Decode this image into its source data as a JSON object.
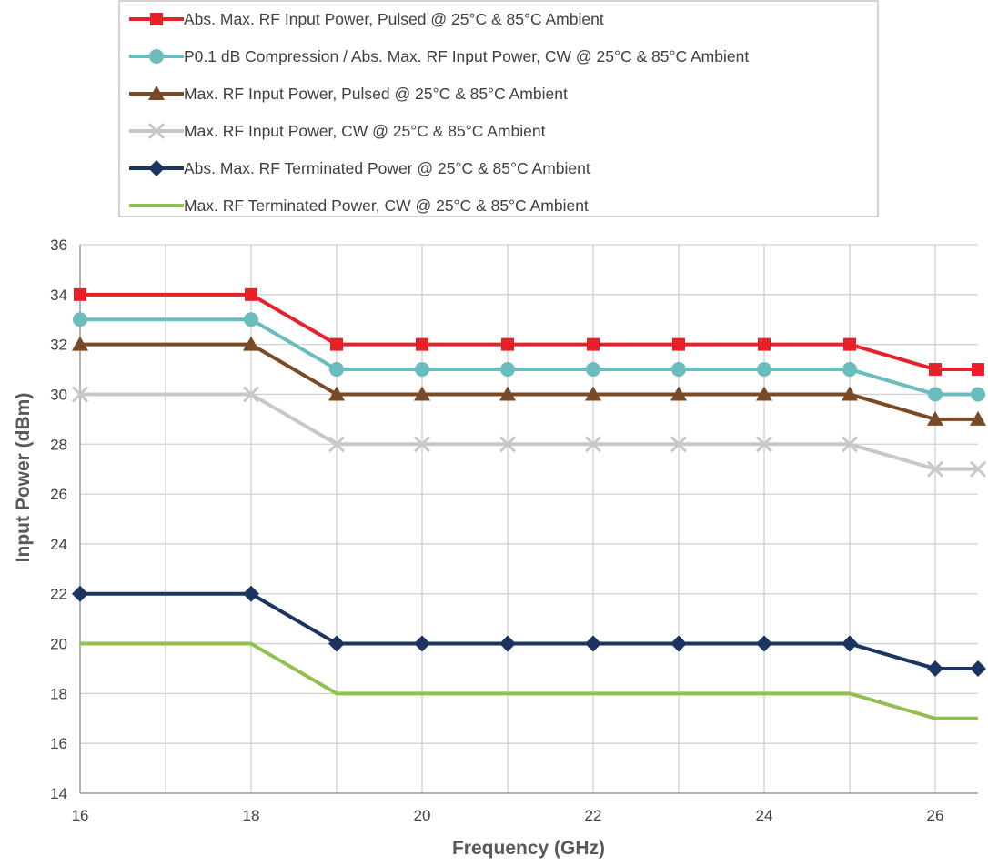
{
  "chart_data": {
    "type": "line",
    "title": "",
    "xlabel": "Frequency (GHz)",
    "ylabel": "Input Power (dBm)",
    "xlim": [
      16,
      26.5
    ],
    "ylim": [
      14,
      36
    ],
    "x_ticks": [
      "16",
      "18",
      "20",
      "22",
      "24",
      "26"
    ],
    "y_ticks": [
      "14",
      "16",
      "18",
      "20",
      "22",
      "24",
      "26",
      "28",
      "30",
      "32",
      "34",
      "36"
    ],
    "grid": true,
    "legend_position": "top",
    "x": [
      16,
      18,
      19,
      20,
      21,
      22,
      23,
      24,
      25,
      26,
      26.5
    ],
    "series": [
      {
        "name": "Abs. Max. RF Input Power, Pulsed @ 25°C & 85°C Ambient",
        "color": "#e8202a",
        "marker": "square",
        "values": [
          34,
          34,
          32,
          32,
          32,
          32,
          32,
          32,
          32,
          31,
          31
        ]
      },
      {
        "name": "P0.1 dB Compression / Abs. Max. RF Input Power, CW @ 25°C & 85°C Ambient",
        "color": "#6bbcbc",
        "marker": "circle",
        "values": [
          33,
          33,
          31,
          31,
          31,
          31,
          31,
          31,
          31,
          30,
          30
        ]
      },
      {
        "name": "Max. RF Input Power, Pulsed @  25°C & 85°C Ambient",
        "color": "#7a4a25",
        "marker": "triangle",
        "values": [
          32,
          32,
          30,
          30,
          30,
          30,
          30,
          30,
          30,
          29,
          29
        ]
      },
      {
        "name": "Max. RF Input Power, CW @ 25°C & 85°C Ambient",
        "color": "#c8c8c8",
        "marker": "x",
        "values": [
          30,
          30,
          28,
          28,
          28,
          28,
          28,
          28,
          28,
          27,
          27
        ]
      },
      {
        "name": "Abs. Max. RF Terminated Power @ 25°C & 85°C Ambient",
        "color": "#1c3462",
        "marker": "diamond",
        "values": [
          22,
          22,
          20,
          20,
          20,
          20,
          20,
          20,
          20,
          19,
          19
        ]
      },
      {
        "name": "Max. RF Terminated Power, CW @ 25°C & 85°C Ambient",
        "color": "#92c04f",
        "marker": "none",
        "values": [
          20,
          20,
          18,
          18,
          18,
          18,
          18,
          18,
          18,
          17,
          17
        ]
      }
    ]
  }
}
